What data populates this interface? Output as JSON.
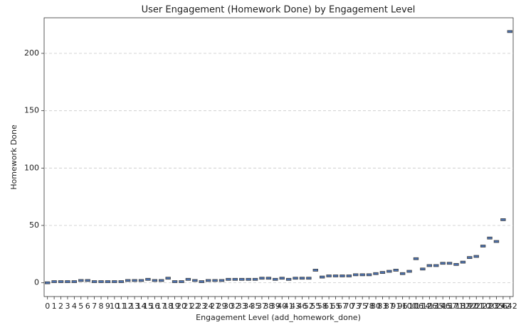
{
  "chart_data": {
    "type": "box",
    "title": "User Engagement (Homework Done) by Engagement Level",
    "x_label": "Engagement Level (add_homework_done)",
    "y_label": "Homework Done",
    "categories": [
      "0",
      "1",
      "2",
      "3",
      "4",
      "5",
      "6",
      "7",
      "8",
      "9",
      "10",
      "11",
      "12",
      "13",
      "14",
      "15",
      "16",
      "17",
      "18",
      "19",
      "20",
      "21",
      "22",
      "23",
      "24",
      "27",
      "29",
      "30",
      "32",
      "33",
      "34",
      "35",
      "37",
      "38",
      "39",
      "40",
      "41",
      "43",
      "46",
      "52",
      "55",
      "58",
      "61",
      "65",
      "67",
      "70",
      "73",
      "75",
      "78",
      "80",
      "83",
      "87",
      "91",
      "96",
      "100",
      "106",
      "114",
      "126",
      "135",
      "146",
      "157",
      "171",
      "182",
      "192",
      "201",
      "210",
      "220",
      "235",
      "242",
      "642"
    ],
    "values": [
      0,
      1,
      1,
      1,
      1,
      2,
      2,
      1,
      1,
      1,
      1,
      1,
      2,
      2,
      2,
      3,
      2,
      2,
      4,
      1,
      1,
      3,
      2,
      1,
      2,
      2,
      2,
      3,
      3,
      3,
      3,
      3,
      4,
      4,
      3,
      4,
      3,
      4,
      4,
      4,
      11,
      5,
      6,
      6,
      6,
      6,
      7,
      7,
      7,
      8,
      9,
      10,
      11,
      8,
      10,
      21,
      12,
      15,
      15,
      17,
      17,
      16,
      18,
      22,
      23,
      32,
      39,
      36,
      55,
      219
    ],
    "color": "#4c72b0",
    "ylim": [
      -12,
      231
    ],
    "yticks": [
      0,
      50,
      100,
      150,
      200
    ],
    "grid": true
  }
}
